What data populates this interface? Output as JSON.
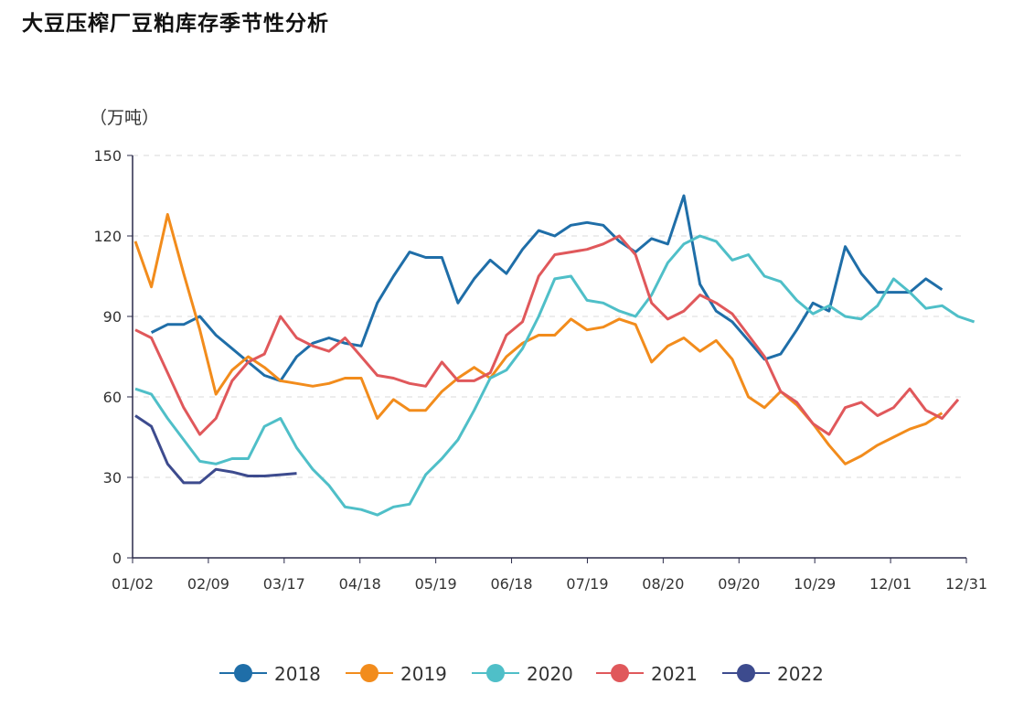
{
  "chart_data": {
    "type": "line",
    "title": "大豆压榨厂豆粕库存季节性分析",
    "ylabel": "（万吨）",
    "ylim": [
      0,
      150
    ],
    "yticks": [
      0,
      30,
      60,
      90,
      120,
      150
    ],
    "x_tick_labels": [
      "01/02",
      "02/09",
      "03/17",
      "04/18",
      "05/19",
      "06/18",
      "07/19",
      "08/20",
      "09/20",
      "10/29",
      "12/01",
      "12/31"
    ],
    "grid": true,
    "legend_position": "bottom",
    "series": [
      {
        "name": "2018",
        "color": "#1f6ea8",
        "values": [
          null,
          84,
          87,
          87,
          90,
          83,
          78,
          73,
          68,
          66,
          75,
          80,
          82,
          80,
          79,
          95,
          105,
          114,
          112,
          112,
          95,
          104,
          111,
          106,
          115,
          122,
          120,
          124,
          125,
          124,
          118,
          114,
          119,
          117,
          135,
          102,
          92,
          88,
          81,
          74,
          76,
          85,
          95,
          92,
          116,
          106,
          99,
          99,
          99,
          104,
          100
        ]
      },
      {
        "name": "2019",
        "color": "#f28c1c",
        "values": [
          118,
          101,
          128,
          106,
          85,
          61,
          70,
          75,
          71,
          66,
          65,
          64,
          65,
          67,
          67,
          52,
          59,
          55,
          55,
          62,
          67,
          71,
          67,
          75,
          80,
          83,
          83,
          89,
          85,
          86,
          89,
          87,
          73,
          79,
          82,
          77,
          81,
          74,
          60,
          56,
          62,
          57,
          50,
          42,
          35,
          38,
          42,
          45,
          48,
          50,
          54
        ]
      },
      {
        "name": "2020",
        "color": "#4fbfc8",
        "values": [
          63,
          61,
          52,
          44,
          36,
          35,
          37,
          37,
          49,
          52,
          41,
          33,
          27,
          19,
          18,
          16,
          19,
          20,
          31,
          37,
          44,
          55,
          67,
          70,
          78,
          90,
          104,
          105,
          96,
          95,
          92,
          90,
          98,
          110,
          117,
          120,
          118,
          111,
          113,
          105,
          103,
          96,
          91,
          94,
          90,
          89,
          94,
          104,
          99,
          93,
          94,
          90,
          88
        ]
      },
      {
        "name": "2021",
        "color": "#e0585b",
        "values": [
          85,
          82,
          69,
          56,
          46,
          52,
          66,
          73,
          76,
          90,
          82,
          79,
          77,
          82,
          75,
          68,
          67,
          65,
          64,
          73,
          66,
          66,
          69,
          83,
          88,
          105,
          113,
          114,
          115,
          117,
          120,
          113,
          95,
          89,
          92,
          98,
          95,
          91,
          83,
          75,
          62,
          58,
          50,
          46,
          56,
          58,
          53,
          56,
          63,
          55,
          52,
          59
        ]
      },
      {
        "name": "2022",
        "color": "#3d4b8e",
        "values": [
          53,
          49,
          35,
          28,
          28,
          33,
          32,
          30.5,
          30.5,
          31,
          31.5
        ]
      }
    ]
  }
}
